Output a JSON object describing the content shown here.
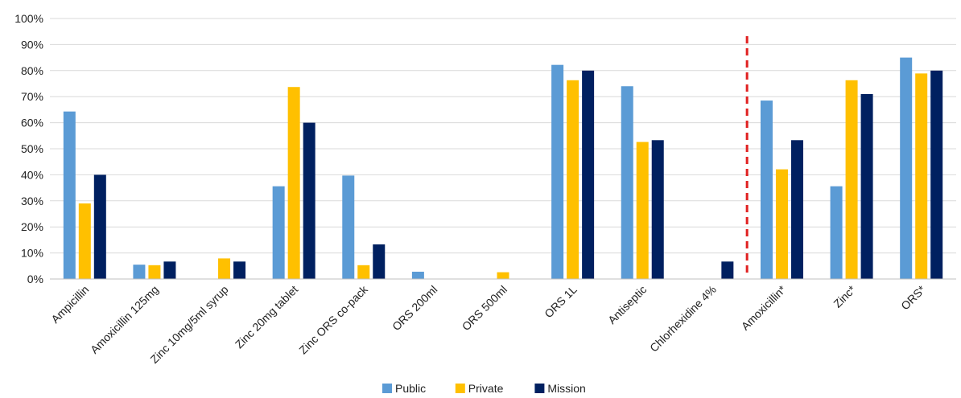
{
  "chart_data": {
    "type": "bar",
    "title": "",
    "xlabel": "",
    "ylabel": "",
    "ylim": [
      0,
      100
    ],
    "y_ticks": [
      0,
      10,
      20,
      30,
      40,
      50,
      60,
      70,
      80,
      90,
      100
    ],
    "y_tick_suffix": "%",
    "grid": true,
    "legend_position": "bottom",
    "categories": [
      "Ampicillin",
      "Amoxicillin 125mg",
      "Zinc 10mg/5ml syrup",
      "Zinc 20mg tablet",
      "Zinc ORS co-pack",
      "ORS 200ml",
      "ORS 500ml",
      "ORS 1L",
      "Antiseptic",
      "Chlorhexidine 4%",
      "Amoxicillin*",
      "Zinc*",
      "ORS*"
    ],
    "series": [
      {
        "name": "Public",
        "color": "#5b9bd5",
        "values": [
          64.3,
          5.5,
          0,
          35.6,
          39.7,
          2.8,
          0,
          82.2,
          74,
          0,
          68.5,
          35.6,
          85
        ]
      },
      {
        "name": "Private",
        "color": "#ffc000",
        "values": [
          29,
          5.3,
          7.9,
          73.7,
          5.3,
          0,
          2.6,
          76.3,
          52.6,
          0,
          42.1,
          76.3,
          78.9
        ]
      },
      {
        "name": "Mission",
        "color": "#002060",
        "values": [
          40,
          6.7,
          6.7,
          60,
          13.3,
          0,
          0,
          80,
          53.3,
          6.7,
          53.3,
          71,
          80
        ]
      }
    ],
    "annotations": [
      {
        "type": "vertical-dashed-line",
        "color": "#e02020",
        "between_categories": [
          "Chlorhexidine 4%",
          "Amoxicillin*"
        ]
      }
    ]
  }
}
